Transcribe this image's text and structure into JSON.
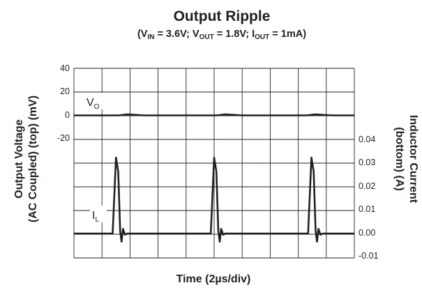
{
  "chart_data": {
    "type": "line",
    "title": "Output Ripple",
    "subtitle": {
      "open": "(V",
      "vin_sub": "IN",
      "vin_val": " = 3.6V; V",
      "vout_sub": "OUT",
      "vout_val": " = 1.8V; I",
      "iout_sub": "OUT",
      "iout_val": " = 1mA)"
    },
    "xlabel": "Time (2µs/div)",
    "x_divisions": 10,
    "ylabel_left": [
      "Output Voltage",
      "(AC Coupled) (top) (mV)"
    ],
    "ylabel_right": [
      "Inductor Current",
      "(bottom) (A)"
    ],
    "left_axis": {
      "unit": "mV",
      "ticks": [
        "40",
        "20",
        "0",
        "-20"
      ],
      "range": [
        -20,
        40
      ]
    },
    "right_axis": {
      "unit": "A",
      "ticks": [
        "0.04",
        "0.03",
        "0.02",
        "0.01",
        "0.00",
        "-0.01"
      ],
      "range": [
        -0.01,
        0.04
      ]
    },
    "grid": true,
    "series": [
      {
        "label": "V",
        "label_sub": "O",
        "axis": "left",
        "x_div": [
          0,
          1.6,
          1.9,
          2.5,
          5.1,
          5.4,
          6.0,
          8.3,
          8.6,
          9.2,
          10
        ],
        "values": [
          0,
          0,
          0.9,
          0,
          0,
          0.9,
          0,
          0,
          0.9,
          0,
          0
        ]
      },
      {
        "label": "I",
        "label_sub": "L",
        "axis": "right",
        "x_div": [
          0,
          1.38,
          1.5,
          1.58,
          1.65,
          1.7,
          1.75,
          1.82,
          1.9,
          4.88,
          5.0,
          5.08,
          5.15,
          5.2,
          5.25,
          5.32,
          5.4,
          8.35,
          8.47,
          8.55,
          8.62,
          8.67,
          8.72,
          8.79,
          8.87,
          10
        ],
        "values": [
          0,
          0,
          0.0325,
          0.0265,
          0.001,
          -0.0035,
          0.002,
          -0.0005,
          0,
          0,
          0.0325,
          0.0265,
          0.001,
          -0.0035,
          0.002,
          -0.0005,
          0,
          0,
          0.0325,
          0.0265,
          0.001,
          -0.0035,
          0.002,
          -0.0005,
          0,
          0
        ]
      }
    ]
  }
}
